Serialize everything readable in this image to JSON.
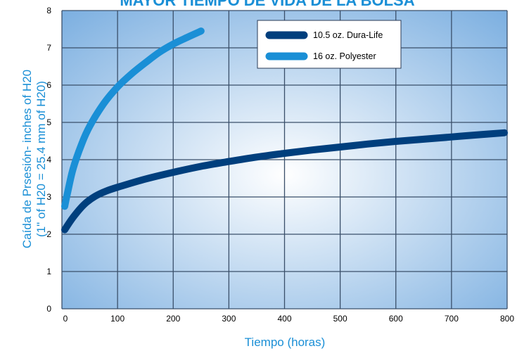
{
  "chart_data": {
    "type": "line",
    "title": "MAYOR TIEMPO DE VIDA DE LA BOLSA",
    "xlabel": "Tiempo (horas)",
    "ylabel": "Caída de Prsesión- inches of H20",
    "ylabel2": "(1\" of H20 = 25.4 mm of H20)",
    "xlim": [
      0,
      800
    ],
    "ylim": [
      0,
      8
    ],
    "xticks": [
      0,
      100,
      200,
      300,
      400,
      500,
      600,
      700,
      800
    ],
    "yticks": [
      0,
      1,
      2,
      3,
      4,
      5,
      6,
      7,
      8
    ],
    "grid": true,
    "legend_position": "top-right",
    "series": [
      {
        "name": "10.5 oz. Dura-Life",
        "color": "#003f7d",
        "x": [
          5,
          20,
          40,
          60,
          80,
          100,
          150,
          200,
          250,
          300,
          350,
          400,
          450,
          500,
          550,
          600,
          650,
          700,
          750,
          795
        ],
        "y": [
          2.12,
          2.45,
          2.8,
          3.02,
          3.16,
          3.26,
          3.48,
          3.66,
          3.82,
          3.95,
          4.07,
          4.17,
          4.26,
          4.34,
          4.42,
          4.49,
          4.55,
          4.61,
          4.67,
          4.72
        ]
      },
      {
        "name": "16 oz. Polyester",
        "color": "#1a8fd6",
        "x": [
          5,
          10,
          20,
          35,
          50,
          75,
          100,
          125,
          150,
          175,
          200,
          225,
          250
        ],
        "y": [
          2.75,
          3.1,
          3.75,
          4.4,
          4.9,
          5.5,
          5.95,
          6.3,
          6.6,
          6.88,
          7.1,
          7.28,
          7.45
        ]
      }
    ]
  },
  "colors": {
    "plot_background_center": "#ffffff",
    "plot_background_edge": "#7aaee0",
    "grid": "#3a4f6a",
    "axis_title": "#1a8fd6",
    "title": "#1a8fd6"
  }
}
